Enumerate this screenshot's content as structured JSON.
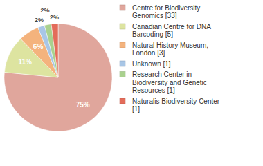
{
  "chart_data": {
    "type": "pie",
    "categories": [
      "Centre for Biodiversity Genomics [33]",
      "Canadian Centre for DNA Barcoding [5]",
      "Natural History Museum, London [3]",
      "Unknown [1]",
      "Research Center in Biodiversity and Genetic Resources [1]",
      "Naturalis Biodiversity Center [1]"
    ],
    "values": [
      75,
      11,
      6,
      2,
      2,
      2
    ],
    "value_labels": [
      "75%",
      "11%",
      "6%",
      "2%",
      "2%",
      "2%"
    ],
    "colors": [
      "#e0a69c",
      "#dde4a0",
      "#f4b37d",
      "#a8c6e6",
      "#a9d18e",
      "#e36c5a"
    ],
    "data_labels": true,
    "legend": "upper right"
  }
}
